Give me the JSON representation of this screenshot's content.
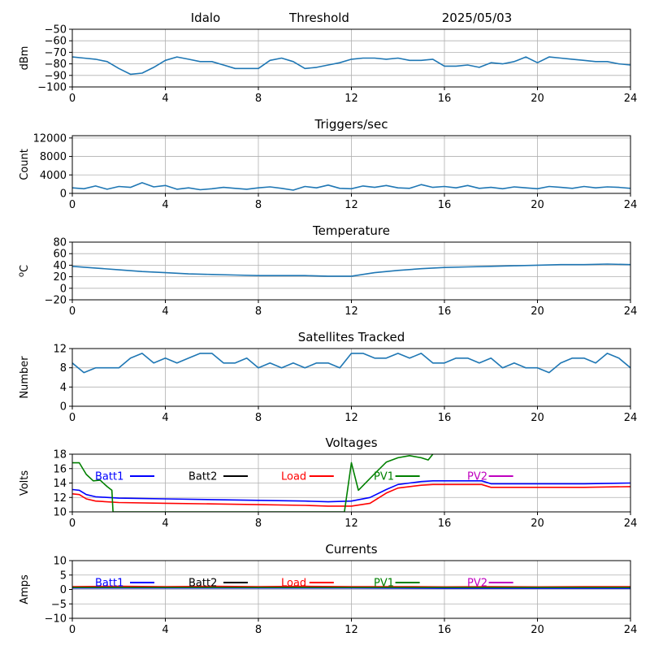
{
  "header": {
    "site": "Idalo",
    "mode": "Threshold",
    "date": "2025/05/03"
  },
  "colors": {
    "default_line": "#1f77b4",
    "batt1": "#0000ff",
    "batt2": "#000000",
    "load": "#ff0000",
    "pv1": "#008000",
    "pv2": "#bf00bf",
    "grid": "#b0b0b0"
  },
  "chart_data": [
    {
      "type": "line",
      "title": "",
      "ylabel": "dBm",
      "xlim": [
        0,
        24
      ],
      "ylim": [
        -100,
        -50
      ],
      "xticks": [
        0,
        4,
        8,
        12,
        16,
        20,
        24
      ],
      "yticks": [
        -100,
        -90,
        -80,
        -70,
        -60,
        -50
      ],
      "grid": true,
      "series": [
        {
          "x": [
            0,
            0.5,
            1,
            1.5,
            2,
            2.5,
            3,
            3.5,
            4,
            4.5,
            5,
            5.5,
            6,
            6.5,
            7,
            7.5,
            8,
            8.5,
            9,
            9.5,
            10,
            10.5,
            11,
            11.5,
            12,
            12.5,
            13,
            13.5,
            14,
            14.5,
            15,
            15.5,
            16,
            16.5,
            17,
            17.5,
            18,
            18.5,
            19,
            19.5,
            20,
            20.5,
            21,
            21.5,
            22,
            22.5,
            23,
            23.5,
            24
          ],
          "values": [
            -74,
            -75,
            -76,
            -78,
            -84,
            -89,
            -88,
            -83,
            -77,
            -74,
            -76,
            -78,
            -78,
            -81,
            -84,
            -84,
            -84,
            -77,
            -75,
            -78,
            -84,
            -83,
            -81,
            -79,
            -76,
            -75,
            -75,
            -76,
            -75,
            -77,
            -77,
            -76,
            -82,
            -82,
            -81,
            -83,
            -79,
            -80,
            -78,
            -74,
            -79,
            -74,
            -75,
            -76,
            -77,
            -78,
            -78,
            -80,
            -81
          ]
        }
      ]
    },
    {
      "type": "line",
      "title": "Triggers/sec",
      "ylabel": "Count",
      "xlim": [
        0,
        24
      ],
      "ylim": [
        0,
        12500
      ],
      "xticks": [
        0,
        4,
        8,
        12,
        16,
        20,
        24
      ],
      "yticks": [
        0,
        4000,
        8000,
        12000
      ],
      "grid": true,
      "series": [
        {
          "x": [
            0,
            0.5,
            1,
            1.5,
            2,
            2.5,
            3,
            3.5,
            4,
            4.5,
            5,
            5.5,
            6,
            6.5,
            7,
            7.5,
            8,
            8.5,
            9,
            9.5,
            10,
            10.5,
            11,
            11.5,
            12,
            12.5,
            13,
            13.5,
            14,
            14.5,
            15,
            15.5,
            16,
            16.5,
            17,
            17.5,
            18,
            18.5,
            19,
            19.5,
            20,
            20.5,
            21,
            21.5,
            22,
            22.5,
            23,
            23.5,
            24
          ],
          "values": [
            1200,
            1000,
            1600,
            900,
            1500,
            1300,
            2300,
            1400,
            1700,
            900,
            1200,
            800,
            1000,
            1300,
            1100,
            900,
            1200,
            1400,
            1100,
            700,
            1500,
            1200,
            1800,
            1100,
            1000,
            1600,
            1300,
            1700,
            1200,
            1100,
            1900,
            1300,
            1500,
            1200,
            1700,
            1100,
            1300,
            1000,
            1400,
            1200,
            1000,
            1500,
            1300,
            1100,
            1500,
            1200,
            1400,
            1300,
            1100
          ]
        }
      ]
    },
    {
      "type": "line",
      "title": "Temperature",
      "ylabel": "oC",
      "xlim": [
        0,
        24
      ],
      "ylim": [
        -20,
        80
      ],
      "xticks": [
        0,
        4,
        8,
        12,
        16,
        20,
        24
      ],
      "yticks": [
        -20,
        0,
        20,
        40,
        60,
        80
      ],
      "grid": true,
      "series": [
        {
          "x": [
            0,
            1,
            2,
            3,
            4,
            5,
            6,
            7,
            8,
            9,
            10,
            11,
            12,
            13,
            14,
            15,
            16,
            17,
            18,
            19,
            20,
            21,
            22,
            23,
            24
          ],
          "values": [
            38,
            35,
            32,
            29,
            27,
            25,
            24,
            23,
            22,
            22,
            22,
            21,
            21,
            27,
            31,
            34,
            36,
            37,
            38,
            39,
            40,
            41,
            41,
            42,
            41
          ]
        }
      ]
    },
    {
      "type": "line",
      "title": "Satellites Tracked",
      "ylabel": "Number",
      "xlim": [
        0,
        24
      ],
      "ylim": [
        0,
        12
      ],
      "xticks": [
        0,
        4,
        8,
        12,
        16,
        20,
        24
      ],
      "yticks": [
        0,
        4,
        8,
        12
      ],
      "grid": true,
      "series": [
        {
          "x": [
            0,
            0.5,
            1,
            1.5,
            2,
            2.5,
            3,
            3.5,
            4,
            4.5,
            5,
            5.5,
            6,
            6.5,
            7,
            7.5,
            8,
            8.5,
            9,
            9.5,
            10,
            10.5,
            11,
            11.5,
            12,
            12.5,
            13,
            13.5,
            14,
            14.5,
            15,
            15.5,
            16,
            16.5,
            17,
            17.5,
            18,
            18.5,
            19,
            19.5,
            20,
            20.5,
            21,
            21.5,
            22,
            22.5,
            23,
            23.5,
            24
          ],
          "values": [
            9,
            7,
            8,
            8,
            8,
            10,
            11,
            9,
            10,
            9,
            10,
            11,
            11,
            9,
            9,
            10,
            8,
            9,
            8,
            9,
            8,
            9,
            9,
            8,
            11,
            11,
            10,
            10,
            11,
            10,
            11,
            9,
            9,
            10,
            10,
            9,
            10,
            8,
            9,
            8,
            8,
            7,
            9,
            10,
            10,
            9,
            11,
            10,
            8
          ]
        }
      ]
    },
    {
      "type": "line",
      "title": "Voltages",
      "ylabel": "Volts",
      "xlim": [
        0,
        24
      ],
      "ylim": [
        10,
        18
      ],
      "xticks": [
        0,
        4,
        8,
        12,
        16,
        20,
        24
      ],
      "yticks": [
        10,
        12,
        14,
        16,
        18
      ],
      "grid": true,
      "legend": "top, single row",
      "series": [
        {
          "name": "Batt1",
          "x": [
            0,
            0.3,
            0.6,
            1,
            2,
            4,
            6,
            8,
            10,
            11,
            12,
            12.8,
            13.5,
            14,
            14.5,
            15,
            15.5,
            16,
            17,
            17.6,
            18,
            20,
            22,
            24
          ],
          "values": [
            13.1,
            13.0,
            12.4,
            12.1,
            11.9,
            11.8,
            11.7,
            11.6,
            11.5,
            11.4,
            11.5,
            12.0,
            13.1,
            13.8,
            14.0,
            14.2,
            14.3,
            14.3,
            14.3,
            14.3,
            13.9,
            13.9,
            13.9,
            14.0
          ]
        },
        {
          "name": "Batt2",
          "x": [],
          "values": []
        },
        {
          "name": "Load",
          "x": [
            0,
            0.3,
            0.6,
            1,
            2,
            4,
            6,
            8,
            10,
            11,
            12,
            12.8,
            13.5,
            14,
            14.5,
            15,
            15.5,
            16,
            17,
            17.6,
            18,
            20,
            22,
            24
          ],
          "values": [
            12.5,
            12.4,
            11.8,
            11.5,
            11.3,
            11.2,
            11.1,
            11.0,
            10.9,
            10.8,
            10.8,
            11.2,
            12.6,
            13.3,
            13.5,
            13.7,
            13.8,
            13.8,
            13.8,
            13.8,
            13.4,
            13.4,
            13.4,
            13.5
          ]
        },
        {
          "name": "PV1",
          "x": [
            0,
            0.3,
            0.6,
            0.9,
            1.2,
            1.5,
            1.7,
            1.75,
            11.7,
            12,
            12.3,
            12.7,
            13,
            13.5,
            14,
            14.5,
            15,
            15.3,
            15.5
          ],
          "values": [
            16.8,
            16.8,
            15.2,
            14.3,
            14.4,
            13.5,
            13.0,
            10.0,
            10.0,
            16.8,
            13.0,
            14.3,
            15.3,
            16.9,
            17.5,
            17.8,
            17.5,
            17.2,
            18.0
          ]
        },
        {
          "name": "PV2",
          "x": [],
          "values": []
        }
      ]
    },
    {
      "type": "line",
      "title": "Currents",
      "ylabel": "Amps",
      "xlim": [
        0,
        24
      ],
      "ylim": [
        -10,
        10
      ],
      "xticks": [
        0,
        4,
        8,
        12,
        16,
        20,
        24
      ],
      "yticks": [
        -10,
        -5,
        0,
        5,
        10
      ],
      "grid": true,
      "legend": "top, single row",
      "series": [
        {
          "name": "Batt1",
          "x": [
            0,
            4,
            8,
            12,
            16,
            20,
            24
          ],
          "values": [
            0.5,
            0.5,
            0.5,
            0.5,
            0.4,
            0.4,
            0.4
          ]
        },
        {
          "name": "Batt2",
          "x": [],
          "values": []
        },
        {
          "name": "Load",
          "x": [
            0,
            2,
            4,
            6,
            8,
            10,
            12,
            14,
            16,
            18,
            20,
            22,
            24
          ],
          "values": [
            1.0,
            1.1,
            1.0,
            1.1,
            1.0,
            1.1,
            1.0,
            1.0,
            0.9,
            1.0,
            0.9,
            1.0,
            1.0
          ]
        },
        {
          "name": "PV1",
          "x": [
            0,
            4,
            8,
            12,
            16,
            20,
            24
          ],
          "values": [
            0.7,
            0.7,
            0.7,
            0.7,
            0.7,
            0.7,
            0.7
          ]
        },
        {
          "name": "PV2",
          "x": [],
          "values": []
        }
      ]
    }
  ]
}
